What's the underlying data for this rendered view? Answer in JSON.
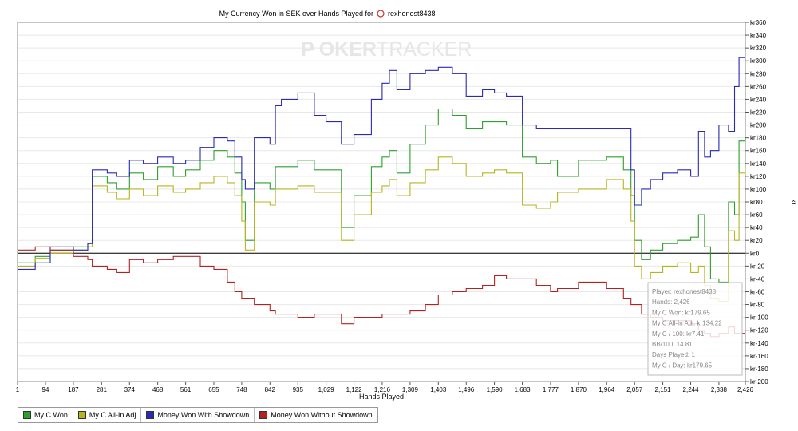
{
  "chart_data": {
    "type": "line",
    "title": "My Currency Won in SEK over Hands Played for",
    "player_name": "rexhonest8438",
    "xlabel": "Hands Played",
    "ylabel": "kr",
    "xlim": [
      1,
      2426
    ],
    "ylim": [
      -200,
      360
    ],
    "x_ticks": [
      1,
      94,
      187,
      281,
      374,
      468,
      561,
      655,
      748,
      842,
      935,
      1029,
      1122,
      1216,
      1309,
      1403,
      1496,
      1590,
      1683,
      1777,
      1870,
      1964,
      2057,
      2151,
      2244,
      2338,
      2426
    ],
    "x_tick_labels": [
      "1",
      "94",
      "187",
      "281",
      "374",
      "468",
      "561",
      "655",
      "748",
      "842",
      "935",
      "1,029",
      "1,122",
      "1,216",
      "1,309",
      "1,403",
      "1,496",
      "1,590",
      "1,683",
      "1,777",
      "1,870",
      "1,964",
      "2,057",
      "2,151",
      "2,244",
      "2,338",
      "2,426"
    ],
    "y_ticks": [
      -200,
      -180,
      -160,
      -140,
      -120,
      -100,
      -80,
      -60,
      -40,
      -20,
      0,
      20,
      40,
      60,
      80,
      100,
      120,
      140,
      160,
      180,
      200,
      220,
      240,
      260,
      280,
      300,
      320,
      340,
      360
    ],
    "y_tick_labels": [
      "kr-200",
      "kr-180",
      "kr-160",
      "kr-140",
      "kr-120",
      "kr-100",
      "kr-80",
      "kr-60",
      "kr-40",
      "kr-20",
      "kr0",
      "kr20",
      "kr40",
      "kr60",
      "kr80",
      "kr100",
      "kr120",
      "kr140",
      "kr160",
      "kr180",
      "kr200",
      "kr220",
      "kr240",
      "kr260",
      "kr280",
      "kr300",
      "kr320",
      "kr340",
      "kr360"
    ],
    "grid": true,
    "legend_position": "bottom-left",
    "series": [
      {
        "name": "My C Won",
        "color": "#2ca02c",
        "points": [
          [
            1,
            -15
          ],
          [
            60,
            -5
          ],
          [
            110,
            5
          ],
          [
            187,
            10
          ],
          [
            235,
            15
          ],
          [
            250,
            120
          ],
          [
            300,
            110
          ],
          [
            330,
            100
          ],
          [
            374,
            125
          ],
          [
            420,
            115
          ],
          [
            468,
            135
          ],
          [
            520,
            120
          ],
          [
            561,
            130
          ],
          [
            610,
            145
          ],
          [
            655,
            160
          ],
          [
            700,
            150
          ],
          [
            725,
            125
          ],
          [
            748,
            80
          ],
          [
            760,
            20
          ],
          [
            790,
            110
          ],
          [
            842,
            100
          ],
          [
            860,
            135
          ],
          [
            935,
            145
          ],
          [
            990,
            130
          ],
          [
            1029,
            130
          ],
          [
            1080,
            40
          ],
          [
            1122,
            90
          ],
          [
            1180,
            135
          ],
          [
            1216,
            150
          ],
          [
            1240,
            160
          ],
          [
            1265,
            125
          ],
          [
            1309,
            170
          ],
          [
            1360,
            200
          ],
          [
            1403,
            225
          ],
          [
            1450,
            215
          ],
          [
            1496,
            195
          ],
          [
            1550,
            205
          ],
          [
            1590,
            205
          ],
          [
            1630,
            200
          ],
          [
            1683,
            150
          ],
          [
            1730,
            140
          ],
          [
            1777,
            145
          ],
          [
            1800,
            120
          ],
          [
            1870,
            145
          ],
          [
            1964,
            150
          ],
          [
            2020,
            130
          ],
          [
            2045,
            90
          ],
          [
            2057,
            20
          ],
          [
            2080,
            -10
          ],
          [
            2110,
            5
          ],
          [
            2151,
            15
          ],
          [
            2200,
            20
          ],
          [
            2244,
            25
          ],
          [
            2270,
            60
          ],
          [
            2290,
            10
          ],
          [
            2310,
            -40
          ],
          [
            2338,
            -45
          ],
          [
            2370,
            80
          ],
          [
            2390,
            60
          ],
          [
            2405,
            175
          ],
          [
            2426,
            180
          ]
        ]
      },
      {
        "name": "My C All-In Adj",
        "color": "#b7b51f",
        "points": [
          [
            1,
            -20
          ],
          [
            60,
            -8
          ],
          [
            110,
            0
          ],
          [
            187,
            5
          ],
          [
            235,
            10
          ],
          [
            250,
            105
          ],
          [
            300,
            95
          ],
          [
            330,
            85
          ],
          [
            374,
            100
          ],
          [
            420,
            90
          ],
          [
            468,
            105
          ],
          [
            520,
            95
          ],
          [
            561,
            100
          ],
          [
            610,
            110
          ],
          [
            655,
            120
          ],
          [
            700,
            110
          ],
          [
            725,
            90
          ],
          [
            748,
            50
          ],
          [
            760,
            5
          ],
          [
            790,
            80
          ],
          [
            842,
            75
          ],
          [
            860,
            100
          ],
          [
            935,
            105
          ],
          [
            990,
            95
          ],
          [
            1029,
            95
          ],
          [
            1080,
            20
          ],
          [
            1122,
            60
          ],
          [
            1180,
            95
          ],
          [
            1216,
            105
          ],
          [
            1240,
            115
          ],
          [
            1265,
            90
          ],
          [
            1309,
            110
          ],
          [
            1360,
            130
          ],
          [
            1403,
            150
          ],
          [
            1450,
            140
          ],
          [
            1496,
            120
          ],
          [
            1550,
            125
          ],
          [
            1590,
            130
          ],
          [
            1630,
            125
          ],
          [
            1683,
            75
          ],
          [
            1730,
            70
          ],
          [
            1777,
            80
          ],
          [
            1800,
            95
          ],
          [
            1870,
            100
          ],
          [
            1964,
            115
          ],
          [
            2020,
            100
          ],
          [
            2045,
            50
          ],
          [
            2057,
            -20
          ],
          [
            2080,
            -40
          ],
          [
            2110,
            -30
          ],
          [
            2151,
            -20
          ],
          [
            2200,
            -15
          ],
          [
            2244,
            -30
          ],
          [
            2270,
            -20
          ],
          [
            2290,
            -50
          ],
          [
            2310,
            -70
          ],
          [
            2338,
            -75
          ],
          [
            2370,
            35
          ],
          [
            2390,
            20
          ],
          [
            2405,
            125
          ],
          [
            2426,
            134
          ]
        ]
      },
      {
        "name": "Money Won With Showdown",
        "color": "#2a2ab5",
        "points": [
          [
            1,
            -25
          ],
          [
            60,
            -15
          ],
          [
            110,
            10
          ],
          [
            187,
            5
          ],
          [
            235,
            15
          ],
          [
            250,
            130
          ],
          [
            300,
            125
          ],
          [
            330,
            120
          ],
          [
            374,
            145
          ],
          [
            420,
            140
          ],
          [
            468,
            150
          ],
          [
            520,
            140
          ],
          [
            561,
            145
          ],
          [
            610,
            165
          ],
          [
            655,
            180
          ],
          [
            700,
            175
          ],
          [
            725,
            150
          ],
          [
            748,
            115
          ],
          [
            760,
            100
          ],
          [
            790,
            180
          ],
          [
            842,
            170
          ],
          [
            860,
            230
          ],
          [
            880,
            240
          ],
          [
            935,
            250
          ],
          [
            990,
            215
          ],
          [
            1029,
            205
          ],
          [
            1080,
            170
          ],
          [
            1122,
            185
          ],
          [
            1180,
            240
          ],
          [
            1216,
            265
          ],
          [
            1240,
            285
          ],
          [
            1265,
            255
          ],
          [
            1309,
            280
          ],
          [
            1360,
            285
          ],
          [
            1403,
            290
          ],
          [
            1450,
            280
          ],
          [
            1496,
            245
          ],
          [
            1550,
            255
          ],
          [
            1590,
            250
          ],
          [
            1630,
            245
          ],
          [
            1683,
            200
          ],
          [
            1730,
            195
          ],
          [
            1777,
            195
          ],
          [
            1800,
            195
          ],
          [
            1870,
            195
          ],
          [
            1964,
            195
          ],
          [
            2020,
            195
          ],
          [
            2045,
            130
          ],
          [
            2057,
            75
          ],
          [
            2080,
            100
          ],
          [
            2110,
            115
          ],
          [
            2151,
            125
          ],
          [
            2200,
            130
          ],
          [
            2244,
            120
          ],
          [
            2270,
            190
          ],
          [
            2290,
            150
          ],
          [
            2310,
            160
          ],
          [
            2338,
            200
          ],
          [
            2370,
            190
          ],
          [
            2390,
            260
          ],
          [
            2405,
            305
          ],
          [
            2426,
            305
          ]
        ]
      },
      {
        "name": "Money Won Without Showdown",
        "color": "#b22222",
        "points": [
          [
            1,
            5
          ],
          [
            60,
            10
          ],
          [
            110,
            5
          ],
          [
            187,
            -5
          ],
          [
            235,
            -10
          ],
          [
            250,
            -20
          ],
          [
            300,
            -25
          ],
          [
            330,
            -30
          ],
          [
            374,
            -10
          ],
          [
            420,
            -15
          ],
          [
            468,
            -10
          ],
          [
            520,
            -5
          ],
          [
            561,
            -5
          ],
          [
            610,
            -20
          ],
          [
            655,
            -25
          ],
          [
            700,
            -45
          ],
          [
            725,
            -60
          ],
          [
            748,
            -70
          ],
          [
            790,
            -80
          ],
          [
            842,
            -90
          ],
          [
            860,
            -95
          ],
          [
            935,
            -100
          ],
          [
            990,
            -95
          ],
          [
            1029,
            -95
          ],
          [
            1080,
            -110
          ],
          [
            1122,
            -100
          ],
          [
            1180,
            -100
          ],
          [
            1216,
            -95
          ],
          [
            1240,
            -95
          ],
          [
            1265,
            -95
          ],
          [
            1309,
            -90
          ],
          [
            1360,
            -80
          ],
          [
            1403,
            -65
          ],
          [
            1450,
            -60
          ],
          [
            1496,
            -55
          ],
          [
            1550,
            -50
          ],
          [
            1590,
            -35
          ],
          [
            1630,
            -40
          ],
          [
            1683,
            -40
          ],
          [
            1730,
            -50
          ],
          [
            1777,
            -60
          ],
          [
            1800,
            -55
          ],
          [
            1870,
            -45
          ],
          [
            1964,
            -55
          ],
          [
            2020,
            -70
          ],
          [
            2045,
            -80
          ],
          [
            2057,
            -80
          ],
          [
            2080,
            -95
          ],
          [
            2110,
            -100
          ],
          [
            2151,
            -105
          ],
          [
            2200,
            -105
          ],
          [
            2244,
            -110
          ],
          [
            2270,
            -120
          ],
          [
            2290,
            -125
          ],
          [
            2310,
            -130
          ],
          [
            2338,
            -125
          ],
          [
            2370,
            -115
          ],
          [
            2390,
            -125
          ],
          [
            2405,
            -125
          ],
          [
            2426,
            -125
          ]
        ]
      }
    ],
    "tooltip": {
      "lines": [
        "Player: rexhonest8438",
        "Hands: 2,426",
        "My C Won: kr179.65",
        "My C All-In Adj: kr134.22",
        "My C / 100: kr7.41",
        "BB/100: 14.81",
        "Days Played: 1",
        "My C / Day: kr179.65"
      ]
    },
    "watermark_parts": [
      "P",
      "OKER",
      "TRACKER"
    ]
  }
}
